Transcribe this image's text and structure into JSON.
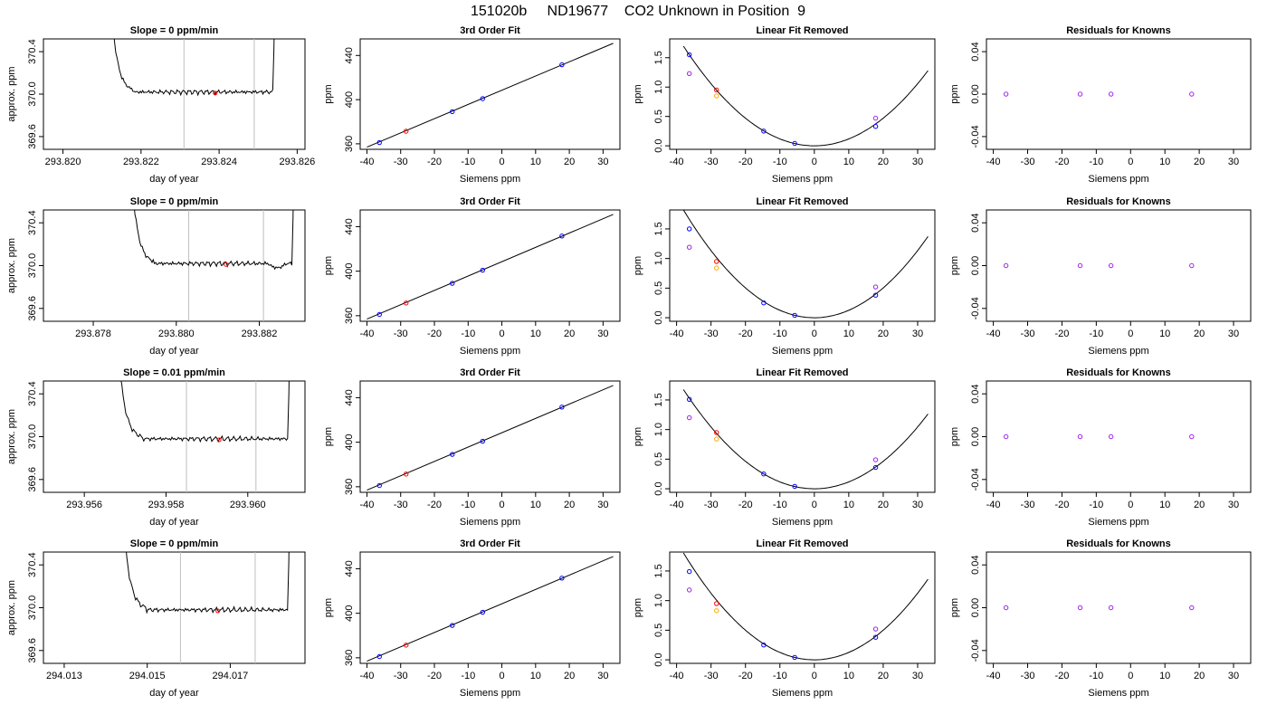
{
  "title": "151020b     ND19677    CO2 Unknown in Position  9",
  "colors": {
    "axis": "#000000",
    "line": "#000000",
    "vline": "#bebebe",
    "blue": "#0000ff",
    "red": "#ff0000",
    "purple": "#a020f0",
    "orange": "#ffa500"
  },
  "chart_data": [
    {
      "type": "line",
      "row": 0,
      "col": 0,
      "title": "Slope =  0  ppm/min",
      "xlabel": "day of year",
      "ylabel": "approx. ppm",
      "xlim": [
        293.8195,
        293.8262
      ],
      "ylim": [
        369.48,
        370.52
      ],
      "xticks": [
        293.82,
        293.822,
        293.824,
        293.826
      ],
      "xtick_labels": [
        "293.820",
        "293.822",
        "293.824",
        "293.826"
      ],
      "yticks": [
        369.6,
        370.0,
        370.4
      ],
      "ytick_labels": [
        "369.6",
        "370.0",
        "370.4"
      ],
      "trace_start": 293.8211,
      "trace_end": 293.8255,
      "steady": 370.02,
      "pre_dip": 0.0,
      "dip_at": 0.8,
      "vlines": [
        293.8231,
        293.8249
      ],
      "marker": {
        "x": 293.8239,
        "y": 370.01,
        "color": "red"
      }
    },
    {
      "type": "line",
      "row": 1,
      "col": 0,
      "title": "Slope =  0  ppm/min",
      "xlabel": "day of year",
      "ylabel": "approx. ppm",
      "xlim": [
        293.8768,
        293.8831
      ],
      "ylim": [
        369.48,
        370.52
      ],
      "xticks": [
        293.878,
        293.88,
        293.882
      ],
      "xtick_labels": [
        "293.878",
        "293.880",
        "293.882"
      ],
      "yticks": [
        369.6,
        370.0,
        370.4
      ],
      "ytick_labels": [
        "369.6",
        "370.0",
        "370.4"
      ],
      "trace_start": 293.8788,
      "trace_end": 293.8829,
      "steady": 370.02,
      "pre_dip": -0.04,
      "dip_at": 0.88,
      "vlines": [
        293.8803,
        293.8821
      ],
      "marker": {
        "x": 293.8812,
        "y": 370.01,
        "color": "red"
      }
    },
    {
      "type": "line",
      "row": 2,
      "col": 0,
      "title": "Slope =  0.01  ppm/min",
      "xlabel": "day of year",
      "ylabel": "approx. ppm",
      "xlim": [
        293.955,
        293.9614
      ],
      "ylim": [
        369.48,
        370.52
      ],
      "xticks": [
        293.956,
        293.958,
        293.96
      ],
      "xtick_labels": [
        "293.956",
        "293.958",
        "293.960"
      ],
      "yticks": [
        369.6,
        370.0,
        370.4
      ],
      "ytick_labels": [
        "369.6",
        "370.0",
        "370.4"
      ],
      "trace_start": 293.9567,
      "trace_end": 293.9611,
      "steady": 369.98,
      "pre_dip": 0.0,
      "dip_at": 0.8,
      "vlines": [
        293.9585,
        293.9602
      ],
      "marker": {
        "x": 293.9593,
        "y": 369.97,
        "color": "red"
      }
    },
    {
      "type": "line",
      "row": 3,
      "col": 0,
      "title": "Slope =  0  ppm/min",
      "xlabel": "day of year",
      "ylabel": "approx. ppm",
      "xlim": [
        294.0125,
        294.0188
      ],
      "ylim": [
        369.48,
        370.52
      ],
      "xticks": [
        294.013,
        294.015,
        294.017
      ],
      "xtick_labels": [
        "294.013",
        "294.015",
        "294.017"
      ],
      "yticks": [
        369.6,
        370.0,
        370.4
      ],
      "ytick_labels": [
        "369.6",
        "370.0",
        "370.4"
      ],
      "trace_start": 294.0143,
      "trace_end": 294.0185,
      "steady": 369.98,
      "pre_dip": 0.0,
      "dip_at": 0.8,
      "vlines": [
        294.0158,
        294.0176
      ],
      "marker": {
        "x": 294.0167,
        "y": 369.97,
        "color": "red"
      }
    },
    {
      "type": "scatter",
      "row": 0,
      "col": 1,
      "title": "3rd Order Fit",
      "xlabel": "Siemens ppm",
      "ylabel": "ppm",
      "xlim": [
        -42,
        35
      ],
      "ylim": [
        355,
        455
      ],
      "xticks": [
        -40,
        -30,
        -20,
        -10,
        0,
        10,
        20,
        30
      ],
      "xtick_labels": [
        "-40",
        "-30",
        "-20",
        "-10",
        "0",
        "10",
        "20",
        "30"
      ],
      "yticks": [
        360,
        400,
        440
      ],
      "ytick_labels": [
        "360",
        "400",
        "440"
      ],
      "fit_line": [
        [
          -40,
          357
        ],
        [
          33,
          451
        ]
      ],
      "points": [
        {
          "x": -36.3,
          "y": 361.1,
          "color": "blue"
        },
        {
          "x": -14.7,
          "y": 389.1,
          "color": "blue"
        },
        {
          "x": -5.7,
          "y": 400.9,
          "color": "blue"
        },
        {
          "x": 17.8,
          "y": 431.6,
          "color": "blue"
        },
        {
          "x": -28.4,
          "y": 371.4,
          "color": "red"
        }
      ]
    },
    {
      "type": "scatter",
      "row": 1,
      "col": 1,
      "title": "3rd Order Fit",
      "xlabel": "Siemens ppm",
      "ylabel": "ppm",
      "xlim": [
        -42,
        35
      ],
      "ylim": [
        355,
        455
      ],
      "xticks": [
        -40,
        -30,
        -20,
        -10,
        0,
        10,
        20,
        30
      ],
      "xtick_labels": [
        "-40",
        "-30",
        "-20",
        "-10",
        "0",
        "10",
        "20",
        "30"
      ],
      "yticks": [
        360,
        400,
        440
      ],
      "ytick_labels": [
        "360",
        "400",
        "440"
      ],
      "fit_line": [
        [
          -40,
          357
        ],
        [
          33,
          451
        ]
      ],
      "points": [
        {
          "x": -36.3,
          "y": 361.1,
          "color": "blue"
        },
        {
          "x": -14.7,
          "y": 389.1,
          "color": "blue"
        },
        {
          "x": -5.7,
          "y": 400.9,
          "color": "blue"
        },
        {
          "x": 17.8,
          "y": 431.6,
          "color": "blue"
        },
        {
          "x": -28.4,
          "y": 371.4,
          "color": "red"
        }
      ]
    },
    {
      "type": "scatter",
      "row": 2,
      "col": 1,
      "title": "3rd Order Fit",
      "xlabel": "Siemens ppm",
      "ylabel": "ppm",
      "xlim": [
        -42,
        35
      ],
      "ylim": [
        355,
        455
      ],
      "xticks": [
        -40,
        -30,
        -20,
        -10,
        0,
        10,
        20,
        30
      ],
      "xtick_labels": [
        "-40",
        "-30",
        "-20",
        "-10",
        "0",
        "10",
        "20",
        "30"
      ],
      "yticks": [
        360,
        400,
        440
      ],
      "ytick_labels": [
        "360",
        "400",
        "440"
      ],
      "fit_line": [
        [
          -40,
          357
        ],
        [
          33,
          451
        ]
      ],
      "points": [
        {
          "x": -36.3,
          "y": 361.1,
          "color": "blue"
        },
        {
          "x": -14.7,
          "y": 389.1,
          "color": "blue"
        },
        {
          "x": -5.7,
          "y": 400.9,
          "color": "blue"
        },
        {
          "x": 17.8,
          "y": 431.6,
          "color": "blue"
        },
        {
          "x": -28.4,
          "y": 371.4,
          "color": "red"
        }
      ]
    },
    {
      "type": "scatter",
      "row": 3,
      "col": 1,
      "title": "3rd Order Fit",
      "xlabel": "Siemens ppm",
      "ylabel": "ppm",
      "xlim": [
        -42,
        35
      ],
      "ylim": [
        355,
        455
      ],
      "xticks": [
        -40,
        -30,
        -20,
        -10,
        0,
        10,
        20,
        30
      ],
      "xtick_labels": [
        "-40",
        "-30",
        "-20",
        "-10",
        "0",
        "10",
        "20",
        "30"
      ],
      "yticks": [
        360,
        400,
        440
      ],
      "ytick_labels": [
        "360",
        "400",
        "440"
      ],
      "fit_line": [
        [
          -40,
          357
        ],
        [
          33,
          451
        ]
      ],
      "points": [
        {
          "x": -36.3,
          "y": 361.1,
          "color": "blue"
        },
        {
          "x": -14.7,
          "y": 389.1,
          "color": "blue"
        },
        {
          "x": -5.7,
          "y": 400.9,
          "color": "blue"
        },
        {
          "x": 17.8,
          "y": 431.6,
          "color": "blue"
        },
        {
          "x": -28.4,
          "y": 371.4,
          "color": "red"
        }
      ]
    },
    {
      "type": "scatter",
      "row": 0,
      "col": 2,
      "title": "Linear Fit Removed",
      "xlabel": "Siemens ppm",
      "ylabel": "ppm",
      "xlim": [
        -42,
        35
      ],
      "ylim": [
        -0.06,
        1.82
      ],
      "xticks": [
        -40,
        -30,
        -20,
        -10,
        0,
        10,
        20,
        30
      ],
      "xtick_labels": [
        "-40",
        "-30",
        "-20",
        "-10",
        "0",
        "10",
        "20",
        "30"
      ],
      "yticks": [
        0.0,
        0.5,
        1.0,
        1.5
      ],
      "ytick_labels": [
        "0.0",
        "0.5",
        "1.0",
        "1.5"
      ],
      "curve": {
        "a": 0.001175,
        "b": 0,
        "from": -38,
        "to": 33
      },
      "points": [
        {
          "x": -36.3,
          "y": 1.55,
          "color": "blue"
        },
        {
          "x": -36.3,
          "y": 1.23,
          "color": "purple"
        },
        {
          "x": -28.4,
          "y": 0.95,
          "color": "red"
        },
        {
          "x": -28.4,
          "y": 0.85,
          "color": "orange"
        },
        {
          "x": -14.7,
          "y": 0.25,
          "color": "blue"
        },
        {
          "x": -5.7,
          "y": 0.04,
          "color": "blue"
        },
        {
          "x": 17.8,
          "y": 0.33,
          "color": "blue"
        },
        {
          "x": 17.8,
          "y": 0.47,
          "color": "purple"
        }
      ]
    },
    {
      "type": "scatter",
      "row": 1,
      "col": 2,
      "title": "Linear Fit Removed",
      "xlabel": "Siemens ppm",
      "ylabel": "ppm",
      "xlim": [
        -42,
        35
      ],
      "ylim": [
        -0.06,
        1.82
      ],
      "xticks": [
        -40,
        -30,
        -20,
        -10,
        0,
        10,
        20,
        30
      ],
      "xtick_labels": [
        "-40",
        "-30",
        "-20",
        "-10",
        "0",
        "10",
        "20",
        "30"
      ],
      "yticks": [
        0.0,
        0.5,
        1.0,
        1.5
      ],
      "ytick_labels": [
        "0.0",
        "0.5",
        "1.0",
        "1.5"
      ],
      "curve": {
        "a": 0.00126,
        "b": 0,
        "from": -38,
        "to": 33
      },
      "points": [
        {
          "x": -36.3,
          "y": 1.5,
          "color": "blue"
        },
        {
          "x": -36.3,
          "y": 1.19,
          "color": "purple"
        },
        {
          "x": -28.4,
          "y": 0.95,
          "color": "red"
        },
        {
          "x": -28.4,
          "y": 0.84,
          "color": "orange"
        },
        {
          "x": -14.7,
          "y": 0.25,
          "color": "blue"
        },
        {
          "x": -5.7,
          "y": 0.04,
          "color": "blue"
        },
        {
          "x": 17.8,
          "y": 0.38,
          "color": "blue"
        },
        {
          "x": 17.8,
          "y": 0.52,
          "color": "purple"
        }
      ]
    },
    {
      "type": "scatter",
      "row": 2,
      "col": 2,
      "title": "Linear Fit Removed",
      "xlabel": "Siemens ppm",
      "ylabel": "ppm",
      "xlim": [
        -42,
        35
      ],
      "ylim": [
        -0.06,
        1.82
      ],
      "xticks": [
        -40,
        -30,
        -20,
        -10,
        0,
        10,
        20,
        30
      ],
      "xtick_labels": [
        "-40",
        "-30",
        "-20",
        "-10",
        "0",
        "10",
        "20",
        "30"
      ],
      "yticks": [
        0.0,
        0.5,
        1.0,
        1.5
      ],
      "ytick_labels": [
        "0.0",
        "0.5",
        "1.0",
        "1.5"
      ],
      "curve": {
        "a": 0.00116,
        "b": 0,
        "from": -38,
        "to": 33
      },
      "points": [
        {
          "x": -36.3,
          "y": 1.51,
          "color": "blue"
        },
        {
          "x": -36.3,
          "y": 1.2,
          "color": "purple"
        },
        {
          "x": -28.4,
          "y": 0.95,
          "color": "red"
        },
        {
          "x": -28.4,
          "y": 0.84,
          "color": "orange"
        },
        {
          "x": -14.7,
          "y": 0.25,
          "color": "blue"
        },
        {
          "x": -5.7,
          "y": 0.04,
          "color": "blue"
        },
        {
          "x": 17.8,
          "y": 0.36,
          "color": "blue"
        },
        {
          "x": 17.8,
          "y": 0.49,
          "color": "purple"
        }
      ]
    },
    {
      "type": "scatter",
      "row": 3,
      "col": 2,
      "title": "Linear Fit Removed",
      "xlabel": "Siemens ppm",
      "ylabel": "ppm",
      "xlim": [
        -42,
        35
      ],
      "ylim": [
        -0.06,
        1.82
      ],
      "xticks": [
        -40,
        -30,
        -20,
        -10,
        0,
        10,
        20,
        30
      ],
      "xtick_labels": [
        "-40",
        "-30",
        "-20",
        "-10",
        "0",
        "10",
        "20",
        "30"
      ],
      "yticks": [
        0.0,
        0.5,
        1.0,
        1.5
      ],
      "ytick_labels": [
        "0.0",
        "0.5",
        "1.0",
        "1.5"
      ],
      "curve": {
        "a": 0.00125,
        "b": 0,
        "from": -38,
        "to": 33
      },
      "points": [
        {
          "x": -36.3,
          "y": 1.49,
          "color": "blue"
        },
        {
          "x": -36.3,
          "y": 1.18,
          "color": "purple"
        },
        {
          "x": -28.4,
          "y": 0.95,
          "color": "red"
        },
        {
          "x": -28.4,
          "y": 0.83,
          "color": "orange"
        },
        {
          "x": -14.7,
          "y": 0.25,
          "color": "blue"
        },
        {
          "x": -5.7,
          "y": 0.04,
          "color": "blue"
        },
        {
          "x": 17.8,
          "y": 0.38,
          "color": "blue"
        },
        {
          "x": 17.8,
          "y": 0.52,
          "color": "purple"
        }
      ]
    },
    {
      "type": "scatter",
      "row": 0,
      "col": 3,
      "title": "Residuals for Knowns",
      "xlabel": "Siemens ppm",
      "ylabel": "ppm",
      "xlim": [
        -42,
        35
      ],
      "ylim": [
        -0.052,
        0.052
      ],
      "xticks": [
        -40,
        -30,
        -20,
        -10,
        0,
        10,
        20,
        30
      ],
      "xtick_labels": [
        "-40",
        "-30",
        "-20",
        "-10",
        "0",
        "10",
        "20",
        "30"
      ],
      "yticks": [
        -0.04,
        0.0,
        0.04
      ],
      "ytick_labels": [
        "-0.04",
        "0.00",
        "0.04"
      ],
      "points": [
        {
          "x": -36.3,
          "y": 0,
          "color": "purple"
        },
        {
          "x": -14.7,
          "y": 0,
          "color": "purple"
        },
        {
          "x": -5.7,
          "y": 0,
          "color": "purple"
        },
        {
          "x": 17.8,
          "y": 0,
          "color": "purple"
        }
      ]
    },
    {
      "type": "scatter",
      "row": 1,
      "col": 3,
      "title": "Residuals for Knowns",
      "xlabel": "Siemens ppm",
      "ylabel": "ppm",
      "xlim": [
        -42,
        35
      ],
      "ylim": [
        -0.052,
        0.052
      ],
      "xticks": [
        -40,
        -30,
        -20,
        -10,
        0,
        10,
        20,
        30
      ],
      "xtick_labels": [
        "-40",
        "-30",
        "-20",
        "-10",
        "0",
        "10",
        "20",
        "30"
      ],
      "yticks": [
        -0.04,
        0.0,
        0.04
      ],
      "ytick_labels": [
        "-0.04",
        "0.00",
        "0.04"
      ],
      "points": [
        {
          "x": -36.3,
          "y": 0,
          "color": "purple"
        },
        {
          "x": -14.7,
          "y": 0,
          "color": "purple"
        },
        {
          "x": -5.7,
          "y": 0,
          "color": "purple"
        },
        {
          "x": 17.8,
          "y": 0,
          "color": "purple"
        }
      ]
    },
    {
      "type": "scatter",
      "row": 2,
      "col": 3,
      "title": "Residuals for Knowns",
      "xlabel": "Siemens ppm",
      "ylabel": "ppm",
      "xlim": [
        -42,
        35
      ],
      "ylim": [
        -0.052,
        0.052
      ],
      "xticks": [
        -40,
        -30,
        -20,
        -10,
        0,
        10,
        20,
        30
      ],
      "xtick_labels": [
        "-40",
        "-30",
        "-20",
        "-10",
        "0",
        "10",
        "20",
        "30"
      ],
      "yticks": [
        -0.04,
        0.0,
        0.04
      ],
      "ytick_labels": [
        "-0.04",
        "0.00",
        "0.04"
      ],
      "points": [
        {
          "x": -36.3,
          "y": 0,
          "color": "purple"
        },
        {
          "x": -14.7,
          "y": 0,
          "color": "purple"
        },
        {
          "x": -5.7,
          "y": 0,
          "color": "purple"
        },
        {
          "x": 17.8,
          "y": 0,
          "color": "purple"
        }
      ]
    },
    {
      "type": "scatter",
      "row": 3,
      "col": 3,
      "title": "Residuals for Knowns",
      "xlabel": "Siemens ppm",
      "ylabel": "ppm",
      "xlim": [
        -42,
        35
      ],
      "ylim": [
        -0.052,
        0.052
      ],
      "xticks": [
        -40,
        -30,
        -20,
        -10,
        0,
        10,
        20,
        30
      ],
      "xtick_labels": [
        "-40",
        "-30",
        "-20",
        "-10",
        "0",
        "10",
        "20",
        "30"
      ],
      "yticks": [
        -0.04,
        0.0,
        0.04
      ],
      "ytick_labels": [
        "-0.04",
        "0.00",
        "0.04"
      ],
      "points": [
        {
          "x": -36.3,
          "y": 0,
          "color": "purple"
        },
        {
          "x": -14.7,
          "y": 0,
          "color": "purple"
        },
        {
          "x": -5.7,
          "y": 0,
          "color": "purple"
        },
        {
          "x": 17.8,
          "y": 0,
          "color": "purple"
        }
      ]
    }
  ]
}
